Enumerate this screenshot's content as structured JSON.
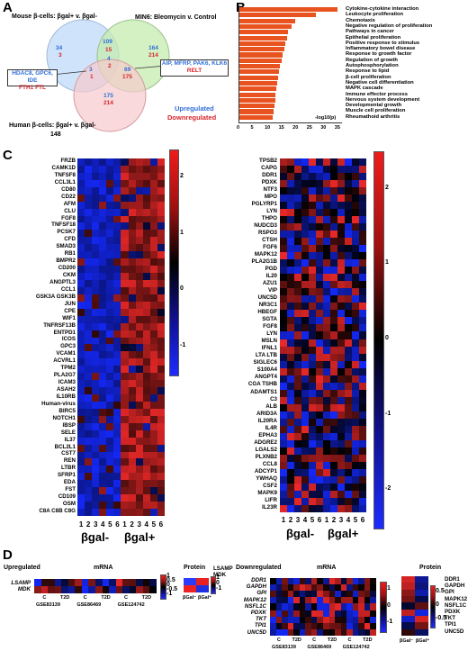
{
  "panels": {
    "a": "A",
    "b": "B",
    "c": "C",
    "d": "D"
  },
  "venn": {
    "title_mouse": "Mouse β-cells: βgal+ v. βgal-",
    "title_min6": "MIN6: Bleomycin v. Control",
    "title_human": "Human β-cells: βgal+ v. βgal-",
    "human_count": "148",
    "mouse_only_up": "34",
    "mouse_only_down": "3",
    "mouse_min6_up": "109",
    "mouse_min6_down": "15",
    "min6_only_up": "164",
    "min6_only_down": "214",
    "center_up": "4",
    "center_down": "2",
    "mouse_human_up": "3",
    "mouse_human_down": "1",
    "min6_human_up": "69",
    "min6_human_down": "175",
    "human_only_up": "175",
    "human_only_down": "214",
    "box1_blue": "HDAC8, GPC6, IDE",
    "box1_red": "FTH1 FTL",
    "box2_blue": "AIP, MFRP, PAK6, KLK6",
    "box2_red": "RELT",
    "legend_up": "Upregulated",
    "legend_down": "Downregulated",
    "colors": {
      "mouse": "#c7defa",
      "min6": "#c6ecb0",
      "human": "#f6c9cc",
      "blue": "#2f6ed8",
      "red": "#d8242a"
    }
  },
  "pathways": {
    "xlabel": "-log10(p)",
    "ticks": [
      "0",
      "5",
      "10",
      "15",
      "20",
      "25",
      "30",
      "35"
    ],
    "items": [
      {
        "label": "Cytokine-cytokine interaction",
        "value": 35
      },
      {
        "label": "Leukocyte proliferation",
        "value": 27.5
      },
      {
        "label": "Chemotaxis",
        "value": 20
      },
      {
        "label": "Negative regulation of proliferation",
        "value": 18.5
      },
      {
        "label": "Pathways in cancer",
        "value": 17.5
      },
      {
        "label": "Epithelial proliferation",
        "value": 17
      },
      {
        "label": "Positive response to stimulus",
        "value": 16.5
      },
      {
        "label": "Inflammatory bowel disease",
        "value": 16
      },
      {
        "label": "Response to growth factor",
        "value": 15.5
      },
      {
        "label": "Regulation of growth",
        "value": 15
      },
      {
        "label": "Autophosphorylation",
        "value": 14.5
      },
      {
        "label": "Response to lipid",
        "value": 14
      },
      {
        "label": "β-cell proliferation",
        "value": 13.8
      },
      {
        "label": "Negative cell differentiation",
        "value": 13.5
      },
      {
        "label": "MAPK cascade",
        "value": 13.2
      },
      {
        "label": "Immune effector process",
        "value": 13
      },
      {
        "label": "Nervous system development",
        "value": 12.8
      },
      {
        "label": "Developmental growth",
        "value": 12.5
      },
      {
        "label": "Muscle cell proliferation",
        "value": 12.2
      },
      {
        "label": "Rheumathoid arthritis",
        "value": 12
      }
    ]
  },
  "heatmap_left": {
    "genes": [
      "FRZB",
      "CAMK1D",
      "TNFSF8",
      "CCL3L1",
      "CD80",
      "CD22",
      "AFM",
      "CLU",
      "FGF8",
      "TNFSF18",
      "PCSK7",
      "CFD",
      "SMAD3",
      "RB1",
      "BMPR2",
      "CD200",
      "CKM",
      "ANGPTL3",
      "CCL1",
      "GSK3A GSK3B",
      "JUN",
      "CPE",
      "WIF1",
      "TNFRSF13B",
      "ENTPD1",
      "ICOS",
      "GPC3",
      "VCAM1",
      "ACVRL1",
      "TPM2",
      "PLA2G7",
      "ICAM3",
      "ASAH2",
      "IL10RB",
      "Human-virus",
      "BIRC5",
      "NOTCH1",
      "IBSP",
      "SELE",
      "IL37",
      "BCL2L1",
      "CST7",
      "REN",
      "LTBR",
      "SFRP1",
      "EDA",
      "FST",
      "CD109",
      "OSM",
      "C8A C8B C8G"
    ],
    "ticks": [
      "2",
      "1",
      "0",
      "-1"
    ]
  },
  "heatmap_right": {
    "genes": [
      "TPSB2",
      "CAPG",
      "DDR1",
      "PDXK",
      "NTF3",
      "MPO",
      "PGLYRP1",
      "LYN",
      "THPO",
      "NUDCD3",
      "RSPO3",
      "CTSH",
      "FGF6",
      "MAPK12",
      "PLA2G1B",
      "PGD",
      "IL20",
      "AZU1",
      "VIP",
      "UNC5D",
      "NR3C1",
      "HBEGF",
      "SGTA",
      "FGF8",
      "LYN",
      "MSLN",
      "IFNL1",
      "LTA LTB",
      "SIGLEC6",
      "S100A4",
      "ANGPT4",
      "CGA TSHB",
      "ADAMTS1",
      "C3",
      "ALB",
      "ARID3A",
      "IL20RA",
      "IL4R",
      "EPHA3",
      "ADGRE2",
      "LGALS2",
      "PLXNB2",
      "CCL8",
      "ADCYP1",
      "YWHAQ",
      "CSF2",
      "MAPK9",
      "LIFR",
      "IL23R"
    ],
    "ticks": [
      "2",
      "1",
      "0",
      "-1",
      "-2"
    ]
  },
  "columns": [
    "1",
    "2",
    "3",
    "4",
    "5",
    "6",
    "1",
    "2",
    "3",
    "4",
    "5",
    "6"
  ],
  "group_minus": "βgal-",
  "group_plus": "βgal+",
  "panel_d": {
    "up_title": "Upregulated",
    "down_title": "Downregulated",
    "mrna": "mRNA",
    "protein": "Protein",
    "up_genes": [
      "LSAMP",
      "MDK"
    ],
    "down_genes": [
      "DDR1",
      "GAPDH",
      "GPI",
      "MAPK12",
      "NSFL1C",
      "PDXK",
      "TKT",
      "TPI1",
      "UNC5D"
    ],
    "cond_c": "C",
    "cond_t2d": "T2D",
    "datasets": [
      "GSE83139",
      "GSE86469",
      "GSE124742"
    ],
    "bgal_minus": "βGal⁻",
    "bgal_plus": "βGal⁺",
    "up_ticks": [
      "1",
      "0.5",
      "0",
      "-0.5",
      "-1"
    ],
    "up_ptick": [
      "1",
      "0",
      "-1"
    ],
    "down_ticks": [
      "1",
      "0",
      "-1"
    ],
    "down_pticks": [
      "0.5",
      "0",
      "-0.5"
    ]
  }
}
